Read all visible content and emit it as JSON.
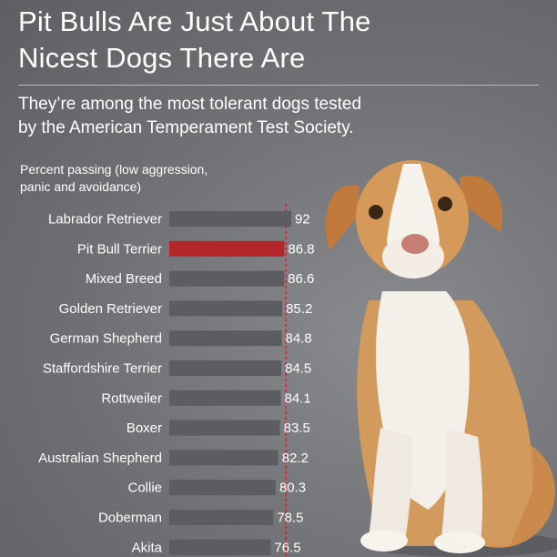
{
  "header": {
    "title": "Pit Bulls Are Just About The\nNicest Dogs There Are",
    "subtitle": "They’re among the most tolerant dogs tested\nby the American Temperament Test Society."
  },
  "chart_data": {
    "type": "bar",
    "orientation": "horizontal",
    "ylabel": "Percent passing (low aggression,\npanic and avoidance)",
    "categories": [
      "Labrador Retriever",
      "Pit Bull Terrier",
      "Mixed Breed",
      "Golden Retriever",
      "German Shepherd",
      "Staffordshire Terrier",
      "Rottweiler",
      "Boxer",
      "Australian Shepherd",
      "Collie",
      "Doberman",
      "Akita"
    ],
    "values": [
      92,
      86.8,
      86.6,
      85.2,
      84.8,
      84.5,
      84.1,
      83.5,
      82.2,
      80.3,
      78.5,
      76.5
    ],
    "value_labels": [
      "92",
      "86.8",
      "86.6",
      "85.2",
      "84.8",
      "84.5",
      "84.1",
      "83.5",
      "82.2",
      "80.3",
      "78.5",
      "76.5"
    ],
    "highlight": "Pit Bull Terrier",
    "colors": {
      "bar": "#5c5d60",
      "highlight": "#b5262a",
      "reference_line": "#c0282d",
      "text": "#ffffff"
    }
  }
}
